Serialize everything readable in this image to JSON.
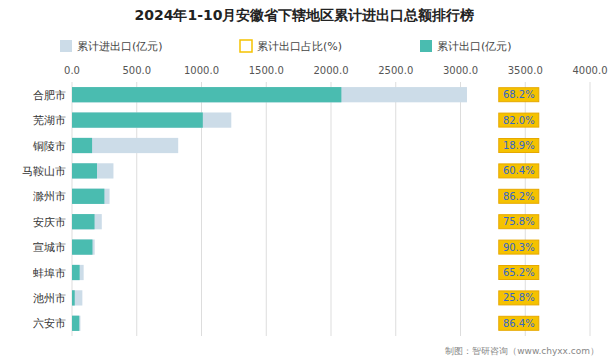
{
  "chart_data": {
    "type": "bar",
    "orientation": "horizontal",
    "title": "2024年1-10月安徽省下辖地区累计进出口总额排行榜",
    "categories": [
      "合肥市",
      "芜湖市",
      "铜陵市",
      "马鞍山市",
      "滁州市",
      "安庆市",
      "宣城市",
      "蚌埠市",
      "池州市",
      "六安市"
    ],
    "series": [
      {
        "name": "累计进出口(亿元)",
        "type": "bar",
        "color": "#ccdce8",
        "values": [
          3050,
          1230,
          820,
          320,
          290,
          230,
          175,
          90,
          80,
          65
        ]
      },
      {
        "name": "累计出口占比(%)",
        "type": "label",
        "color": "#f5c200",
        "values": [
          68.2,
          82.0,
          18.9,
          60.4,
          86.2,
          75.8,
          90.3,
          65.2,
          25.8,
          86.4
        ],
        "value_labels": [
          "68.2%",
          "82.0%",
          "18.9%",
          "60.4%",
          "86.2%",
          "75.8%",
          "90.3%",
          "65.2%",
          "25.8%",
          "86.4%"
        ]
      },
      {
        "name": "累计出口(亿元)",
        "type": "bar",
        "color": "#4abcb0",
        "values": [
          2080,
          1010,
          155,
          193,
          250,
          174,
          158,
          59,
          21,
          56
        ]
      }
    ],
    "xlim": [
      0,
      4000
    ],
    "xticks": [
      {
        "value": 0,
        "label": "0.0"
      },
      {
        "value": 500,
        "label": "500.0"
      },
      {
        "value": 1000,
        "label": "1000.0"
      },
      {
        "value": 1500,
        "label": "1500.0"
      },
      {
        "value": 2000,
        "label": "2000.0"
      },
      {
        "value": 2500,
        "label": "2500.0"
      },
      {
        "value": 3000,
        "label": "3000.0"
      },
      {
        "value": 3500,
        "label": "3500.0"
      },
      {
        "value": 4000,
        "label": "4000.0"
      }
    ],
    "grid": true,
    "legend": "top",
    "annotations": [
      "制图：智研咨询（www.chyxx.com）"
    ]
  }
}
